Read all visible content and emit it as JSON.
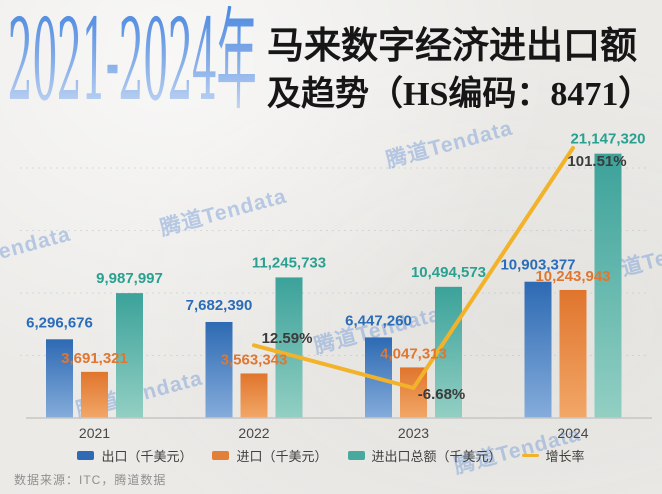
{
  "page": {
    "background": "#ebeae7",
    "source_note": "数据来源：ITC，腾道数据",
    "watermark_text": "腾道Tendata"
  },
  "title": {
    "years": "2021-2024年",
    "main_line1": "马来数字经济进出口额",
    "main_line2": "及趋势（HS编码：8471）"
  },
  "colors": {
    "export_bar_top": "#2d6ab3",
    "export_bar_bottom": "#85acdb",
    "import_bar_top": "#e0752d",
    "import_bar_bottom": "#f2a768",
    "total_bar_top": "#3ba29a",
    "total_bar_bottom": "#93cfc3",
    "export_label": "#2b6cb8",
    "import_label": "#e0762f",
    "total_label": "#2aa190",
    "growth_line": "#f2b32a",
    "growth_label": "#3b3b3b",
    "axis_line": "#c6c6c6",
    "title_gradient_top": "#4a88df",
    "title_gradient_bottom": "#c9daf3",
    "watermark": "#7ca0d8"
  },
  "legend": {
    "items": [
      {
        "label": "出口（千美元）",
        "swatch": "export"
      },
      {
        "label": "进口（千美元）",
        "swatch": "import"
      },
      {
        "label": "进出口总额（千美元）",
        "swatch": "total"
      },
      {
        "label": "增长率",
        "swatch": "growth-line"
      }
    ]
  },
  "chart_data": {
    "type": "bar",
    "subtype": "grouped-bar-with-line",
    "categories": [
      "2021",
      "2022",
      "2023",
      "2024"
    ],
    "series": [
      {
        "name": "出口（千美元）",
        "type": "bar",
        "key": "export",
        "values": [
          6296676,
          7682390,
          6447260,
          10903377
        ]
      },
      {
        "name": "进口（千美元）",
        "type": "bar",
        "key": "import",
        "values": [
          3691321,
          3563343,
          4047313,
          10243943
        ]
      },
      {
        "name": "进出口总额（千美元）",
        "type": "bar",
        "key": "total",
        "values": [
          9987997,
          11245733,
          10494573,
          21147320
        ]
      },
      {
        "name": "增长率",
        "type": "line",
        "key": "growth",
        "values": [
          null,
          12.59,
          -6.68,
          101.51
        ],
        "value_labels": [
          "",
          "12.59%",
          "-6.68%",
          "101.51%"
        ]
      }
    ],
    "title": "2021-2024年马来数字经济进出口额及趋势（HS编码：8471）",
    "xlabel": "",
    "ylabel": "",
    "ylim": [
      0,
      21500000
    ],
    "grid": "faint dashed horizontal lines every 5,000,000",
    "legend_position": "bottom",
    "value_labels_shown": true
  }
}
